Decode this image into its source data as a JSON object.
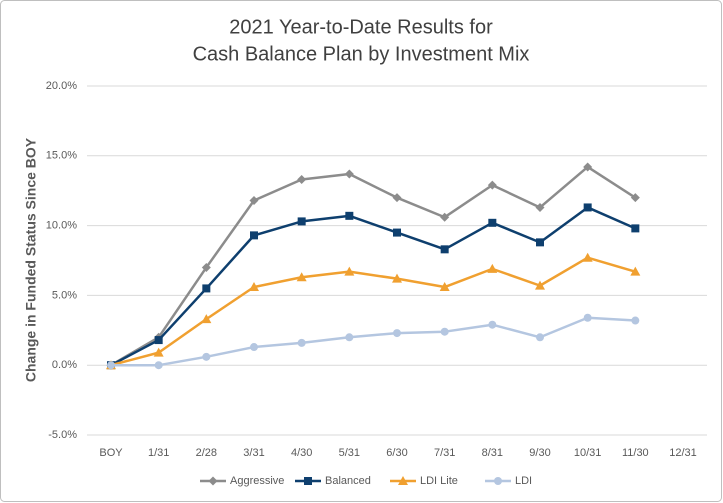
{
  "chart_data": {
    "type": "line",
    "title": [
      "2021 Year-to-Date Results for",
      "Cash Balance Plan by Investment Mix"
    ],
    "y_label": "Change in Funded Status Since BOY",
    "categories": [
      "BOY",
      "1/31",
      "2/28",
      "3/31",
      "4/30",
      "5/31",
      "6/30",
      "7/31",
      "8/31",
      "9/30",
      "10/31",
      "11/30",
      "12/31"
    ],
    "series": [
      {
        "name": "Aggressive",
        "color": "#8c8c8c",
        "marker": "diamond",
        "values": [
          0,
          2.0,
          7.0,
          11.8,
          13.3,
          13.7,
          12.0,
          10.6,
          12.9,
          11.3,
          14.2,
          12.0,
          null
        ]
      },
      {
        "name": "Balanced",
        "color": "#0e3f6e",
        "marker": "square",
        "values": [
          0,
          1.8,
          5.5,
          9.3,
          10.3,
          10.7,
          9.5,
          8.3,
          10.2,
          8.8,
          11.3,
          9.8,
          null
        ]
      },
      {
        "name": "LDI Lite",
        "color": "#f0a030",
        "marker": "triangle",
        "values": [
          0,
          0.9,
          3.3,
          5.6,
          6.3,
          6.7,
          6.2,
          5.6,
          6.9,
          5.7,
          7.7,
          6.7,
          null
        ]
      },
      {
        "name": "LDI",
        "color": "#b4c6e0",
        "marker": "circle",
        "values": [
          0,
          0.0,
          0.6,
          1.3,
          1.6,
          2.0,
          2.3,
          2.4,
          2.9,
          2.0,
          3.4,
          3.2,
          null
        ]
      }
    ],
    "ylim": [
      -5,
      20
    ],
    "yticks": [
      {
        "value": -5,
        "label": "-5.0%"
      },
      {
        "value": 0,
        "label": "0.0%"
      },
      {
        "value": 5,
        "label": "5.0%"
      },
      {
        "value": 10,
        "label": "10.0%"
      },
      {
        "value": 15,
        "label": "15.0%"
      },
      {
        "value": 20,
        "label": "20.0%"
      }
    ],
    "grid": true,
    "legend": "bottom"
  }
}
